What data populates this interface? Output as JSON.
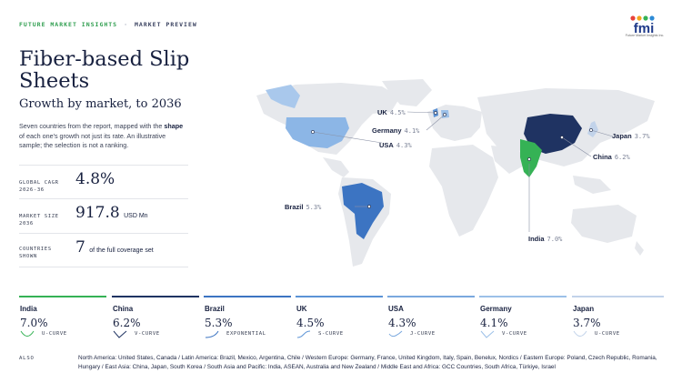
{
  "header": {
    "brand": "FUTURE MARKET INSIGHTS",
    "separator": "·",
    "section": "MARKET PREVIEW",
    "logo_text": "fmi",
    "logo_sub": "Future Market Insights Inc."
  },
  "title": "Fiber-based Slip Sheets",
  "subtitle": "Growth by market, to 2036",
  "description": {
    "part1": "Seven countries from the report, mapped with the ",
    "bold": "shape",
    "part2": " of each one's growth not just its rate. An illustrative sample; the selection is not a ranking."
  },
  "stats": [
    {
      "label": "GLOBAL CAGR 2026-36",
      "value": "4.8%",
      "unit": ""
    },
    {
      "label": "MARKET SIZE 2036",
      "value": "917.8",
      "unit": "USD Mn"
    },
    {
      "label": "COUNTRIES SHOWN",
      "value": "7",
      "unit": "of the full coverage set"
    }
  ],
  "colors": {
    "green": "#35b255",
    "navy": "#1f3362",
    "blue": "#3c74c2",
    "mid_blue": "#5b93d6",
    "light_blue": "#8cb6e6",
    "land": "#e6e8ec",
    "accent_green": "#2f9e4f"
  },
  "map_labels": [
    {
      "name": "UK",
      "pct": "4.5%"
    },
    {
      "name": "Germany",
      "pct": "4.1%"
    },
    {
      "name": "USA",
      "pct": "4.3%"
    },
    {
      "name": "Japan",
      "pct": "3.7%"
    },
    {
      "name": "China",
      "pct": "6.2%"
    },
    {
      "name": "Brazil",
      "pct": "5.3%"
    },
    {
      "name": "India",
      "pct": "7.0%"
    }
  ],
  "countries": [
    {
      "name": "India",
      "value": "7.0%",
      "curve": "U-CURVE",
      "icon": "u-curve-icon",
      "color": "#35b255"
    },
    {
      "name": "China",
      "value": "6.2%",
      "curve": "V-CURVE",
      "icon": "v-curve-icon",
      "color": "#1f3362"
    },
    {
      "name": "Brazil",
      "value": "5.3%",
      "curve": "EXPONENTIAL",
      "icon": "exponential-curve-icon",
      "color": "#3c74c2"
    },
    {
      "name": "UK",
      "value": "4.5%",
      "curve": "S-CURVE",
      "icon": "s-curve-icon",
      "color": "#5b93d6"
    },
    {
      "name": "USA",
      "value": "4.3%",
      "curve": "J-CURVE",
      "icon": "j-curve-icon",
      "color": "#7aa8de"
    },
    {
      "name": "Germany",
      "value": "4.1%",
      "curve": "V-CURVE",
      "icon": "v-curve-icon",
      "color": "#9cc0e8"
    },
    {
      "name": "Japan",
      "value": "3.7%",
      "curve": "U-CURVE",
      "icon": "u-curve-icon",
      "color": "#c2d3ea"
    }
  ],
  "also": {
    "label": "ALSO",
    "text": "North America: United States, Canada  /  Latin America: Brazil, Mexico, Argentina, Chile  /  Western Europe: Germany, France, United Kingdom, Italy, Spain, Benelux, Nordics  /  Eastern Europe: Poland, Czech Republic, Romania, Hungary  /  East Asia: China, Japan, South Korea  /  South Asia and Pacific: India, ASEAN, Australia and New Zealand  /  Middle East and Africa: GCC Countries, South Africa, Türkiye, Israel"
  }
}
